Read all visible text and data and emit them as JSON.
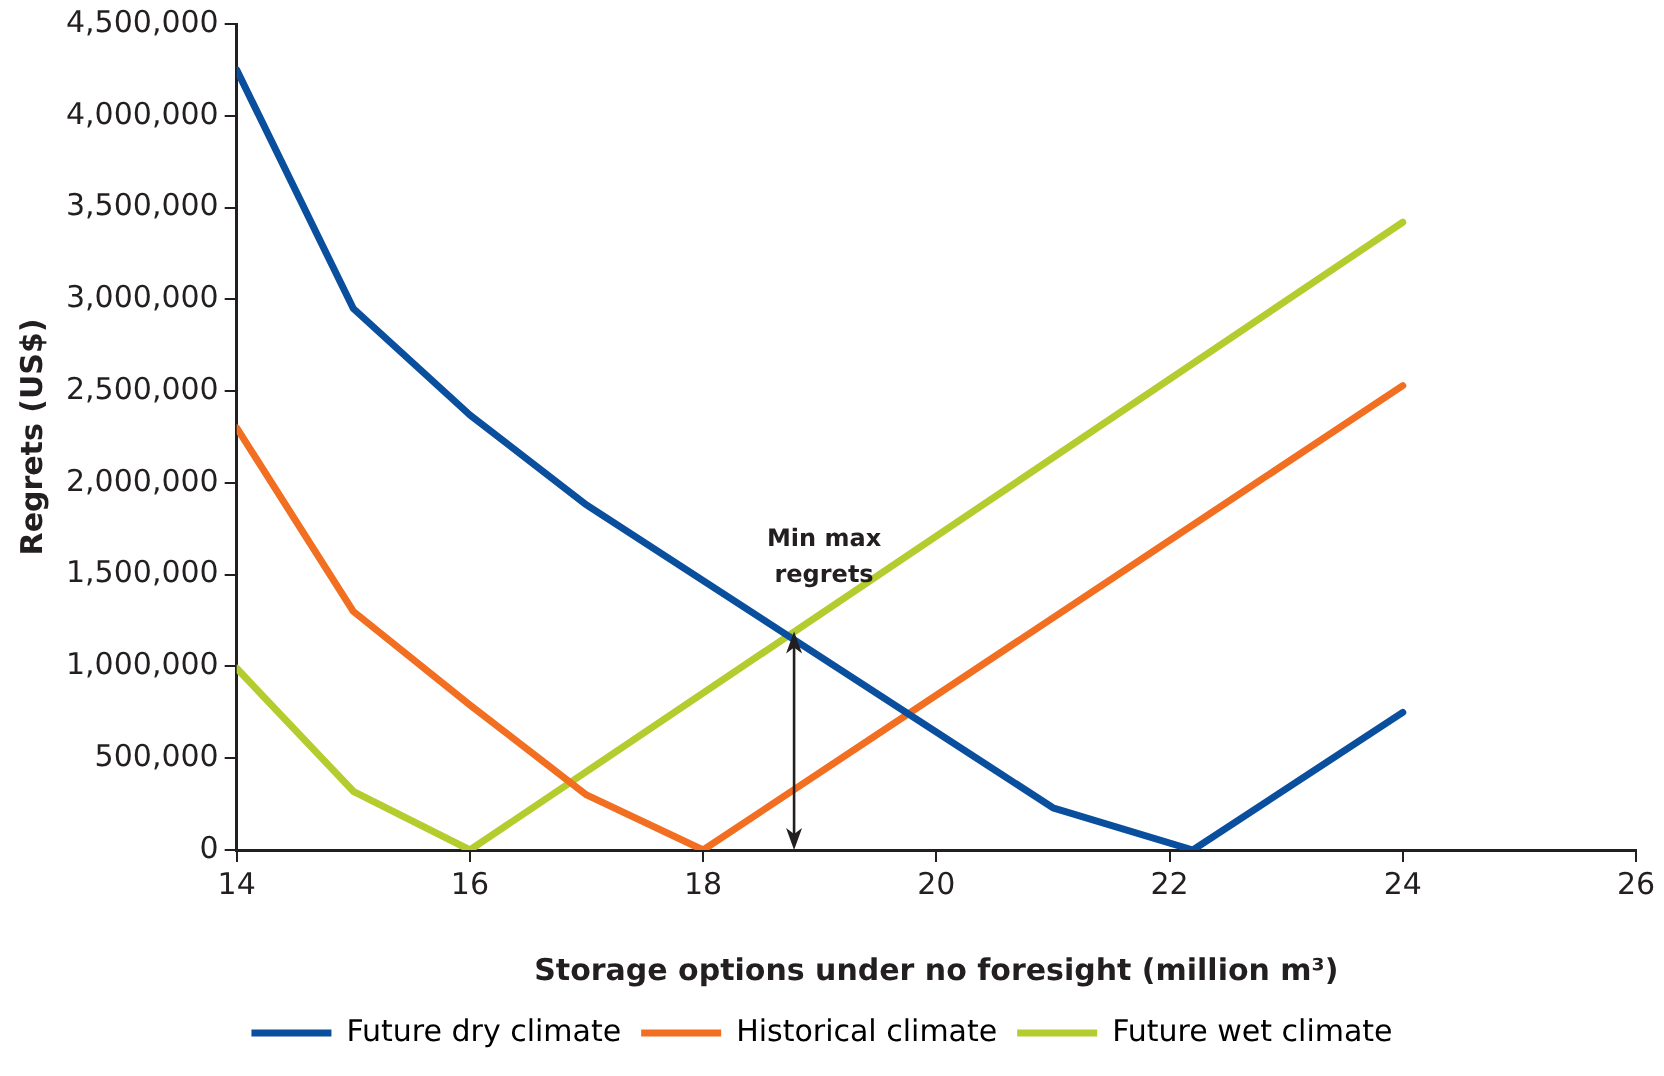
{
  "chart_data": {
    "type": "line",
    "xlabel": "Storage options under no foresight (million m³)",
    "ylabel": "Regrets (US$)",
    "xlim": [
      14,
      26
    ],
    "xticks": [
      14,
      16,
      18,
      20,
      22,
      24,
      26
    ],
    "ylim": [
      0,
      4500000
    ],
    "yticks": [
      {
        "value": 0,
        "label": "0"
      },
      {
        "value": 500000,
        "label": "500,000"
      },
      {
        "value": 1000000,
        "label": "1,000,000"
      },
      {
        "value": 1500000,
        "label": "1,500,000"
      },
      {
        "value": 2000000,
        "label": "2,000,000"
      },
      {
        "value": 2500000,
        "label": "2,500,000"
      },
      {
        "value": 3000000,
        "label": "3,000,000"
      },
      {
        "value": 3500000,
        "label": "3,500,000"
      },
      {
        "value": 4000000,
        "label": "4,000,000"
      },
      {
        "value": 4500000,
        "label": "4,500,000"
      }
    ],
    "grid": false,
    "legend": "bottom",
    "marker": "none",
    "line_style": "solid",
    "series": [
      {
        "name": "Future dry climate",
        "color": "#0a4f9e",
        "x": [
          14,
          15,
          16,
          17,
          21,
          22.2,
          24
        ],
        "values": [
          4250000,
          2950000,
          2370000,
          1880000,
          230000,
          0,
          750000
        ]
      },
      {
        "name": "Historical climate",
        "color": "#f26f22",
        "x": [
          14,
          15,
          16,
          17,
          18,
          24
        ],
        "values": [
          2300000,
          1300000,
          790000,
          300000,
          0,
          2530000
        ]
      },
      {
        "name": "Future wet climate",
        "color": "#b5cc2e",
        "x": [
          14,
          15,
          16,
          24
        ],
        "values": [
          990000,
          320000,
          0,
          3420000
        ]
      }
    ],
    "annotations": [
      {
        "text": "Min max regrets",
        "x": 18.78,
        "y": 1190000
      }
    ]
  }
}
